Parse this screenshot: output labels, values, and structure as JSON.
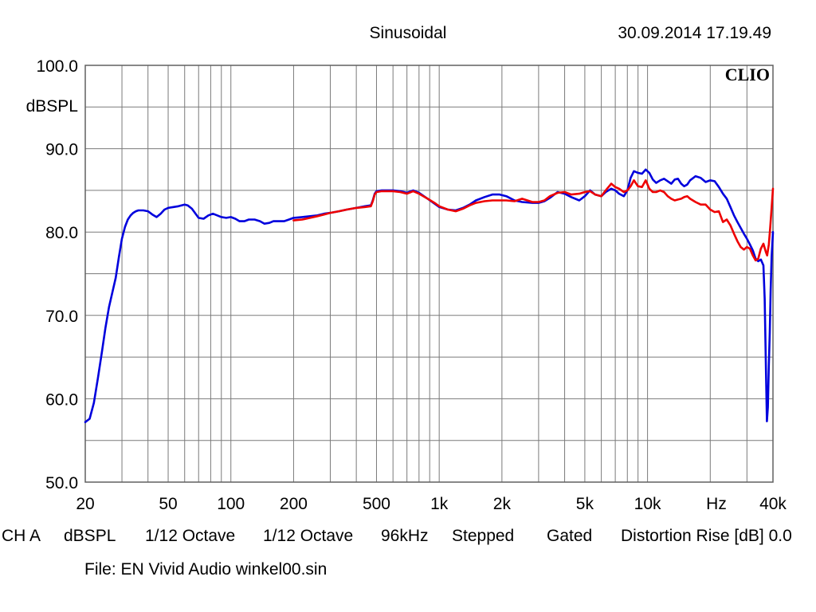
{
  "header": {
    "mode": "Sinusoidal",
    "timestamp": "30.09.2014 17.19.49",
    "brand": "CLIO"
  },
  "settings": {
    "channel": "CH A",
    "unit": "dBSPL",
    "smoothing_a": "1/12 Octave",
    "smoothing_b": "1/12 Octave",
    "sample_rate": "96kHz",
    "sweep": "Stepped",
    "window": "Gated",
    "distortion": "Distortion Rise [dB] 0.0"
  },
  "file_line": "File: EN Vivid Audio winkel00.sin",
  "chart_data": {
    "type": "line",
    "x_scale": "log",
    "xlim": [
      20,
      40000
    ],
    "ylim": [
      50,
      100
    ],
    "grid": true,
    "ylabel": "dBSPL",
    "xunit_label": "Hz",
    "y_ticks": [
      {
        "value": 100,
        "label": "100.0"
      },
      {
        "value": 90,
        "label": "90.0"
      },
      {
        "value": 80,
        "label": "80.0"
      },
      {
        "value": 70,
        "label": "70.0"
      },
      {
        "value": 60,
        "label": "60.0"
      },
      {
        "value": 50,
        "label": "50.0"
      }
    ],
    "x_ticks": [
      {
        "value": 20,
        "label": "20"
      },
      {
        "value": 50,
        "label": "50"
      },
      {
        "value": 100,
        "label": "100"
      },
      {
        "value": 200,
        "label": "200"
      },
      {
        "value": 500,
        "label": "500"
      },
      {
        "value": 1000,
        "label": "1k"
      },
      {
        "value": 2000,
        "label": "2k"
      },
      {
        "value": 5000,
        "label": "5k"
      },
      {
        "value": 10000,
        "label": "10k"
      },
      {
        "value": 40000,
        "label": "40k"
      }
    ],
    "series": [
      {
        "color": "#0000dd",
        "points": [
          [
            20,
            57.2
          ],
          [
            21,
            57.6
          ],
          [
            22,
            59.5
          ],
          [
            23,
            62.5
          ],
          [
            24,
            65.5
          ],
          [
            25,
            68.5
          ],
          [
            26,
            71
          ],
          [
            27,
            72.8
          ],
          [
            28,
            74.5
          ],
          [
            29,
            77
          ],
          [
            30,
            79.2
          ],
          [
            31,
            80.6
          ],
          [
            32,
            81.5
          ],
          [
            33,
            82
          ],
          [
            34,
            82.3
          ],
          [
            35,
            82.5
          ],
          [
            36,
            82.6
          ],
          [
            37,
            82.6
          ],
          [
            38,
            82.6
          ],
          [
            40,
            82.5
          ],
          [
            42,
            82.1
          ],
          [
            44,
            81.8
          ],
          [
            46,
            82.2
          ],
          [
            48,
            82.7
          ],
          [
            50,
            82.9
          ],
          [
            53,
            83
          ],
          [
            56,
            83.1
          ],
          [
            60,
            83.3
          ],
          [
            62,
            83.2
          ],
          [
            65,
            82.8
          ],
          [
            70,
            81.7
          ],
          [
            74,
            81.6
          ],
          [
            78,
            82
          ],
          [
            82,
            82.2
          ],
          [
            86,
            82
          ],
          [
            90,
            81.8
          ],
          [
            95,
            81.7
          ],
          [
            100,
            81.8
          ],
          [
            105,
            81.6
          ],
          [
            110,
            81.3
          ],
          [
            116,
            81.3
          ],
          [
            122,
            81.5
          ],
          [
            130,
            81.5
          ],
          [
            138,
            81.3
          ],
          [
            145,
            81
          ],
          [
            153,
            81.1
          ],
          [
            160,
            81.3
          ],
          [
            170,
            81.3
          ],
          [
            180,
            81.3
          ],
          [
            190,
            81.5
          ],
          [
            200,
            81.7
          ],
          [
            220,
            81.8
          ],
          [
            240,
            81.9
          ],
          [
            260,
            82
          ],
          [
            280,
            82.2
          ],
          [
            300,
            82.3
          ],
          [
            330,
            82.5
          ],
          [
            360,
            82.7
          ],
          [
            400,
            82.9
          ],
          [
            440,
            83.1
          ],
          [
            470,
            83.2
          ],
          [
            480,
            83.8
          ],
          [
            490,
            84.6
          ],
          [
            500,
            84.9
          ],
          [
            530,
            85
          ],
          [
            560,
            85
          ],
          [
            600,
            85
          ],
          [
            650,
            84.9
          ],
          [
            700,
            84.7
          ],
          [
            750,
            85
          ],
          [
            800,
            84.7
          ],
          [
            880,
            84
          ],
          [
            950,
            83.4
          ],
          [
            1000,
            83
          ],
          [
            1100,
            82.7
          ],
          [
            1200,
            82.6
          ],
          [
            1300,
            82.9
          ],
          [
            1400,
            83.3
          ],
          [
            1500,
            83.8
          ],
          [
            1650,
            84.2
          ],
          [
            1800,
            84.5
          ],
          [
            1950,
            84.5
          ],
          [
            2100,
            84.3
          ],
          [
            2300,
            83.8
          ],
          [
            2500,
            83.6
          ],
          [
            2800,
            83.5
          ],
          [
            3000,
            83.5
          ],
          [
            3200,
            83.7
          ],
          [
            3400,
            84.1
          ],
          [
            3700,
            84.8
          ],
          [
            4000,
            84.6
          ],
          [
            4300,
            84.2
          ],
          [
            4700,
            83.8
          ],
          [
            5000,
            84.3
          ],
          [
            5300,
            85
          ],
          [
            5600,
            84.5
          ],
          [
            6000,
            84.3
          ],
          [
            6300,
            84.8
          ],
          [
            6700,
            85.2
          ],
          [
            7000,
            85
          ],
          [
            7300,
            84.6
          ],
          [
            7700,
            84.3
          ],
          [
            8000,
            85
          ],
          [
            8300,
            86.5
          ],
          [
            8600,
            87.3
          ],
          [
            9000,
            87.1
          ],
          [
            9400,
            87
          ],
          [
            9800,
            87.5
          ],
          [
            10200,
            87.1
          ],
          [
            10600,
            86.3
          ],
          [
            11000,
            85.9
          ],
          [
            11500,
            86.2
          ],
          [
            12000,
            86.4
          ],
          [
            12500,
            86.1
          ],
          [
            13000,
            85.8
          ],
          [
            13500,
            86.3
          ],
          [
            14000,
            86.4
          ],
          [
            14500,
            85.8
          ],
          [
            15000,
            85.5
          ],
          [
            15500,
            85.7
          ],
          [
            16000,
            86.2
          ],
          [
            17000,
            86.7
          ],
          [
            18000,
            86.5
          ],
          [
            19000,
            86
          ],
          [
            20000,
            86.2
          ],
          [
            21000,
            86.1
          ],
          [
            22000,
            85.4
          ],
          [
            23000,
            84.6
          ],
          [
            24000,
            84
          ],
          [
            25000,
            83
          ],
          [
            26000,
            82
          ],
          [
            27000,
            81.2
          ],
          [
            28000,
            80.5
          ],
          [
            29000,
            79.8
          ],
          [
            30000,
            79.2
          ],
          [
            31000,
            78.5
          ],
          [
            32000,
            77.8
          ],
          [
            33000,
            76.8
          ],
          [
            34000,
            76.5
          ],
          [
            35000,
            76.7
          ],
          [
            36000,
            76
          ],
          [
            36500,
            72
          ],
          [
            37000,
            64
          ],
          [
            37400,
            57.3
          ],
          [
            37800,
            59
          ],
          [
            38200,
            64
          ],
          [
            38600,
            68
          ],
          [
            39000,
            73
          ],
          [
            39400,
            77
          ],
          [
            40000,
            80
          ]
        ]
      },
      {
        "color": "#ee0000",
        "points": [
          [
            200,
            81.4
          ],
          [
            220,
            81.5
          ],
          [
            240,
            81.7
          ],
          [
            260,
            81.9
          ],
          [
            280,
            82.1
          ],
          [
            300,
            82.3
          ],
          [
            330,
            82.5
          ],
          [
            360,
            82.7
          ],
          [
            400,
            82.9
          ],
          [
            440,
            83
          ],
          [
            470,
            83.1
          ],
          [
            480,
            83.7
          ],
          [
            490,
            84.5
          ],
          [
            500,
            84.8
          ],
          [
            530,
            84.9
          ],
          [
            560,
            84.9
          ],
          [
            600,
            84.9
          ],
          [
            650,
            84.8
          ],
          [
            700,
            84.6
          ],
          [
            750,
            84.9
          ],
          [
            800,
            84.6
          ],
          [
            880,
            84
          ],
          [
            950,
            83.5
          ],
          [
            1000,
            83.1
          ],
          [
            1100,
            82.7
          ],
          [
            1200,
            82.5
          ],
          [
            1300,
            82.8
          ],
          [
            1400,
            83.2
          ],
          [
            1500,
            83.5
          ],
          [
            1650,
            83.7
          ],
          [
            1800,
            83.8
          ],
          [
            1950,
            83.8
          ],
          [
            2100,
            83.8
          ],
          [
            2300,
            83.7
          ],
          [
            2500,
            84
          ],
          [
            2800,
            83.6
          ],
          [
            3000,
            83.6
          ],
          [
            3200,
            83.8
          ],
          [
            3400,
            84.3
          ],
          [
            3700,
            84.7
          ],
          [
            4000,
            84.8
          ],
          [
            4300,
            84.5
          ],
          [
            4700,
            84.6
          ],
          [
            5000,
            84.8
          ],
          [
            5300,
            84.9
          ],
          [
            5600,
            84.5
          ],
          [
            6000,
            84.3
          ],
          [
            6300,
            85
          ],
          [
            6700,
            85.8
          ],
          [
            7000,
            85.4
          ],
          [
            7300,
            85.2
          ],
          [
            7700,
            84.8
          ],
          [
            8000,
            85
          ],
          [
            8300,
            85.5
          ],
          [
            8600,
            86.2
          ],
          [
            9000,
            85.5
          ],
          [
            9400,
            85.4
          ],
          [
            9800,
            86.2
          ],
          [
            10200,
            85.2
          ],
          [
            10600,
            84.8
          ],
          [
            11000,
            84.8
          ],
          [
            11500,
            85
          ],
          [
            12000,
            84.8
          ],
          [
            12500,
            84.3
          ],
          [
            13000,
            84
          ],
          [
            13500,
            83.8
          ],
          [
            14000,
            83.9
          ],
          [
            14500,
            84
          ],
          [
            15000,
            84.2
          ],
          [
            15500,
            84.3
          ],
          [
            16000,
            84
          ],
          [
            17000,
            83.6
          ],
          [
            18000,
            83.3
          ],
          [
            19000,
            83.3
          ],
          [
            20000,
            82.7
          ],
          [
            21000,
            82.4
          ],
          [
            22000,
            82.5
          ],
          [
            23000,
            81.2
          ],
          [
            24000,
            81.5
          ],
          [
            25000,
            80.8
          ],
          [
            26000,
            79.8
          ],
          [
            27000,
            78.9
          ],
          [
            28000,
            78.2
          ],
          [
            29000,
            77.9
          ],
          [
            30000,
            78.2
          ],
          [
            31000,
            78
          ],
          [
            32000,
            77.2
          ],
          [
            33000,
            76.6
          ],
          [
            34000,
            76.8
          ],
          [
            35000,
            78
          ],
          [
            36000,
            78.6
          ],
          [
            37000,
            77.6
          ],
          [
            37500,
            77.2
          ],
          [
            38200,
            78.5
          ],
          [
            38800,
            80.5
          ],
          [
            39300,
            82.5
          ],
          [
            40000,
            85.2
          ]
        ]
      }
    ]
  }
}
